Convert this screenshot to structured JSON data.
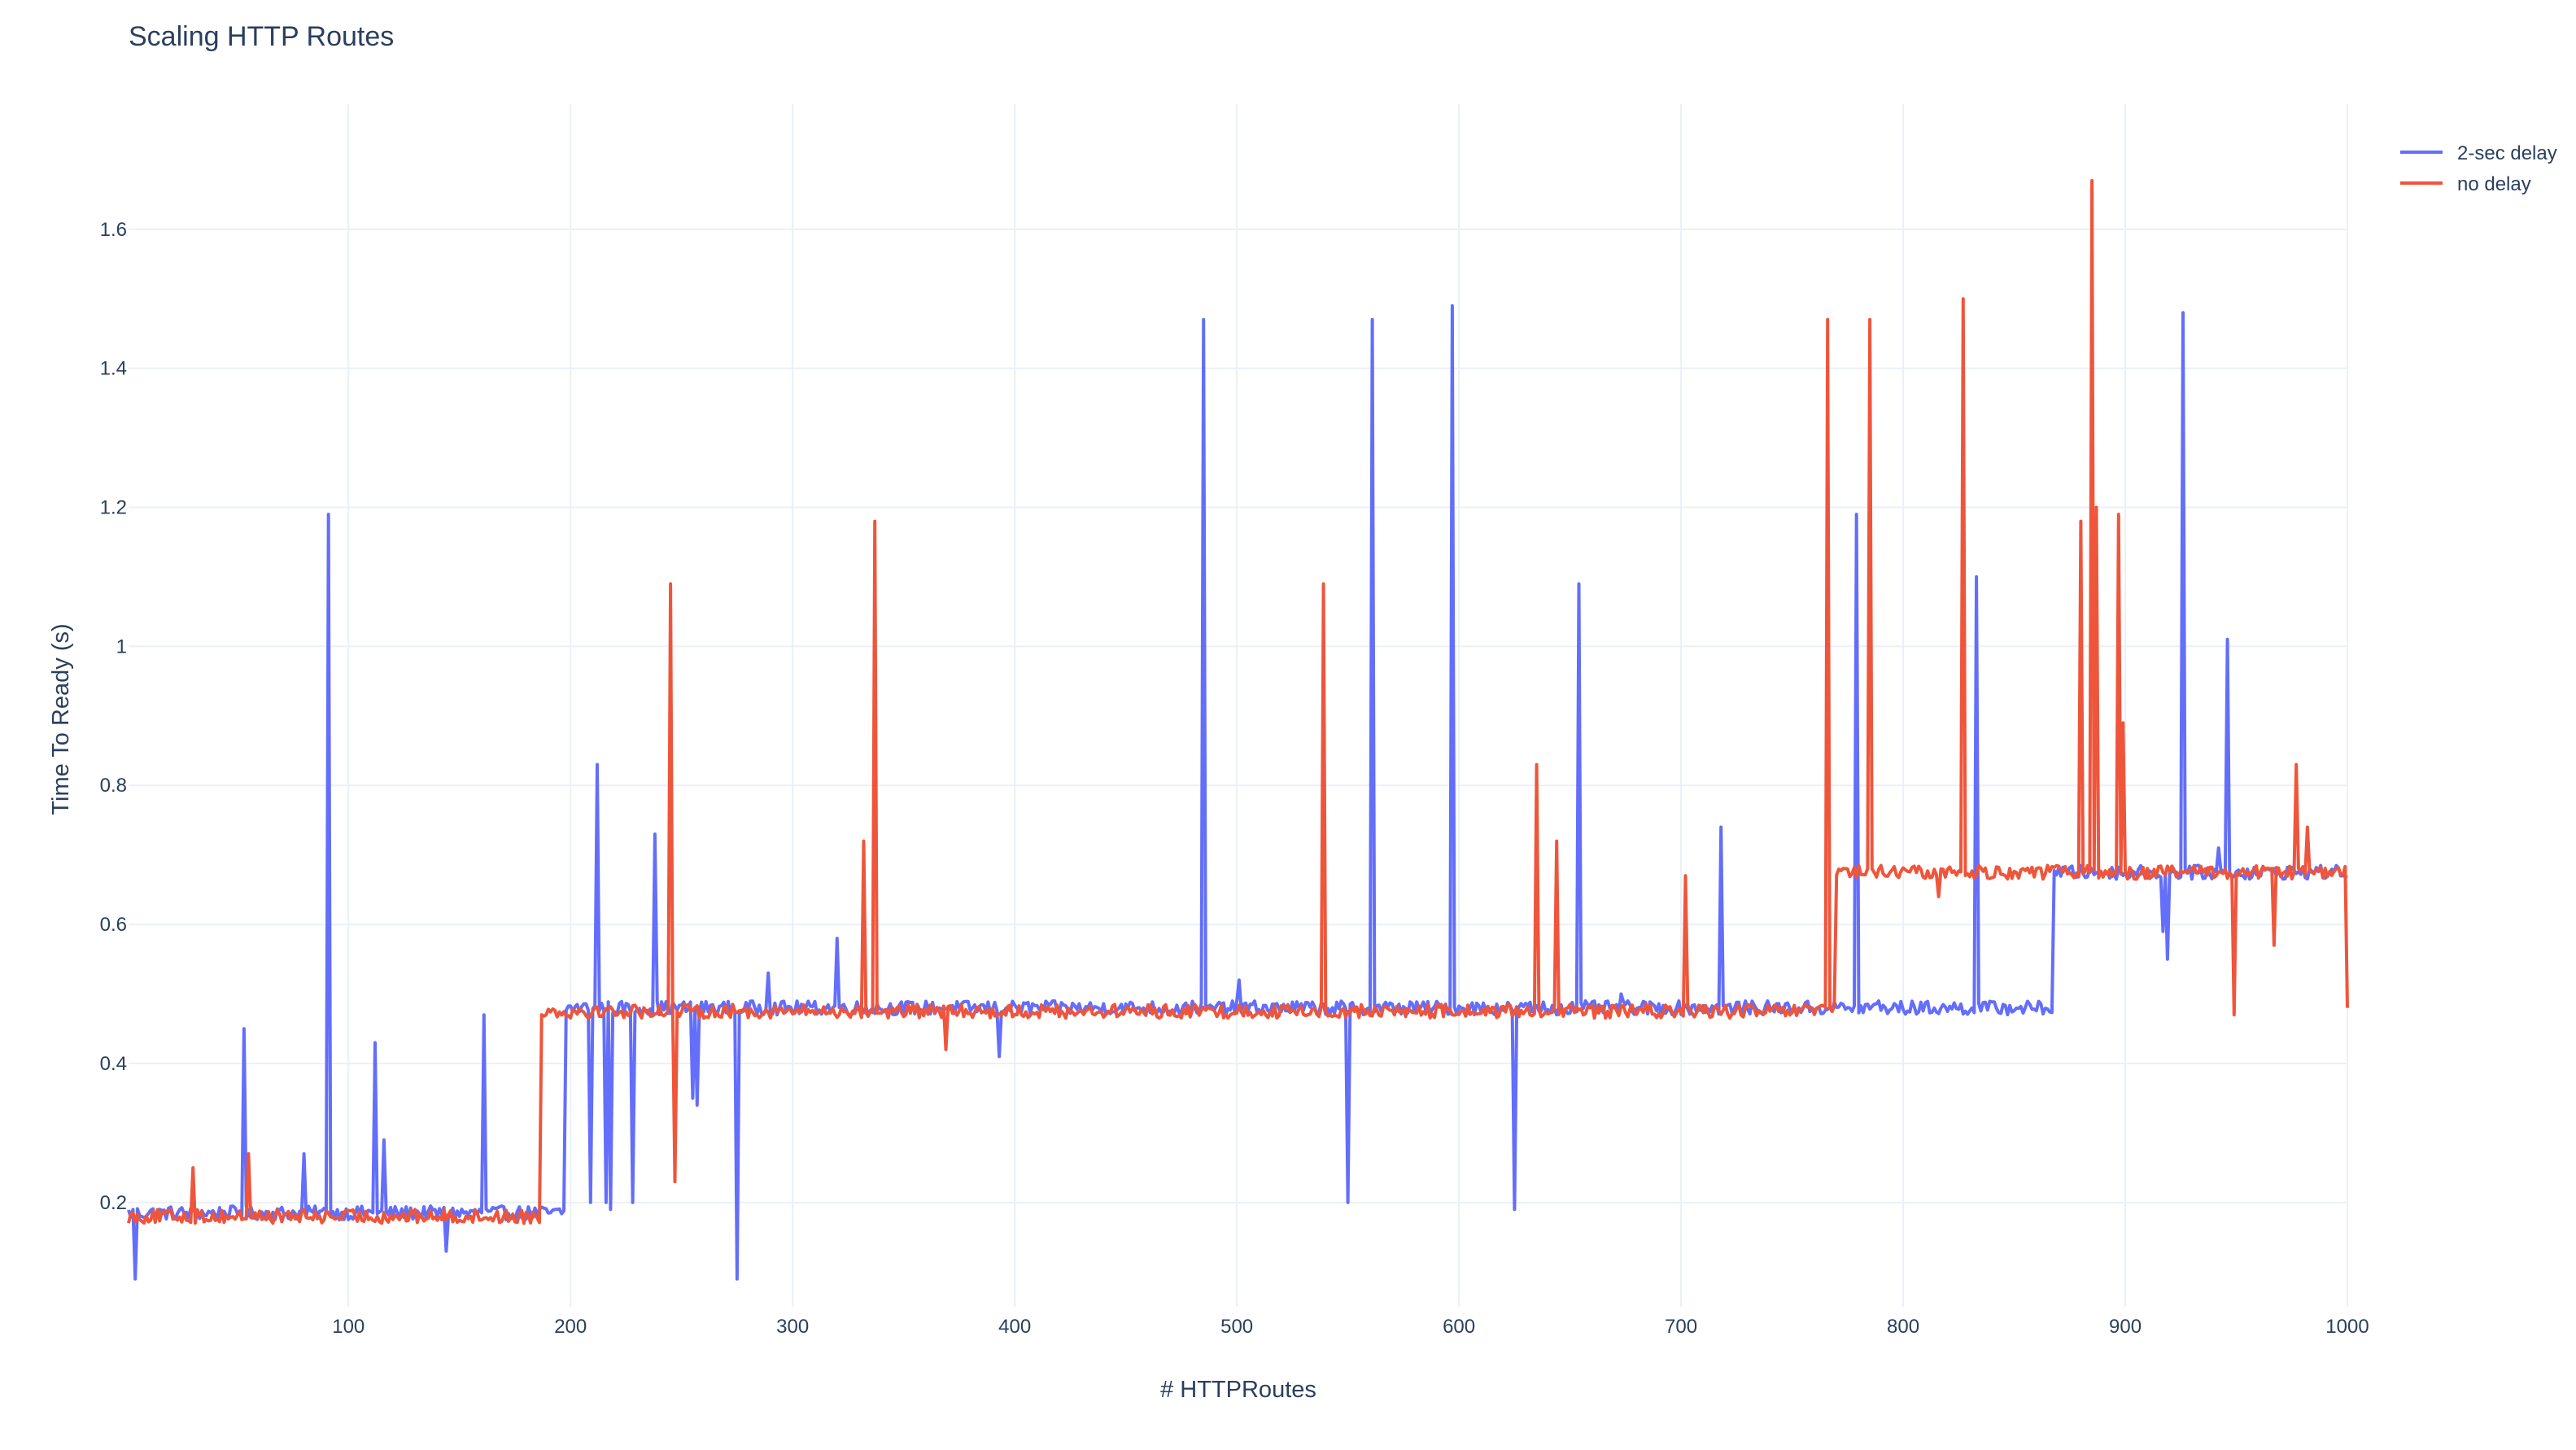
{
  "chart_data": {
    "type": "line",
    "title": "Scaling HTTP Routes",
    "xlabel": "# HTTPRoutes",
    "ylabel": "Time To Ready (s)",
    "xlim": [
      1,
      1000
    ],
    "ylim": [
      0.05,
      1.78
    ],
    "xticks": [
      100,
      200,
      300,
      400,
      500,
      600,
      700,
      800,
      900,
      1000
    ],
    "yticks": [
      0.2,
      0.4,
      0.6,
      0.8,
      1.0,
      1.2,
      1.4,
      1.6
    ],
    "ytick_labels": [
      "0.2",
      "0.4",
      "0.6",
      "0.8",
      "1",
      "1.2",
      "1.4",
      "1.6"
    ],
    "grid": true,
    "legend_position": "top-right",
    "series": [
      {
        "name": "2-sec delay",
        "color": "#636efa",
        "base_levels": [
          {
            "from": 1,
            "to": 157,
            "value": 0.185
          },
          {
            "from": 157,
            "to": 198,
            "value": 0.185
          },
          {
            "from": 198,
            "to": 755,
            "value": 0.48
          },
          {
            "from": 755,
            "to": 868,
            "value": 0.48
          },
          {
            "from": 868,
            "to": 1000,
            "value": 0.675
          }
        ],
        "spikes": [
          {
            "x": 4,
            "y": 0.09
          },
          {
            "x": 53,
            "y": 0.45
          },
          {
            "x": 80,
            "y": 0.27
          },
          {
            "x": 91,
            "y": 1.19
          },
          {
            "x": 112,
            "y": 0.43
          },
          {
            "x": 116,
            "y": 0.29
          },
          {
            "x": 144,
            "y": 0.13
          },
          {
            "x": 161,
            "y": 0.47
          },
          {
            "x": 193,
            "y": 0.19
          },
          {
            "x": 209,
            "y": 0.2
          },
          {
            "x": 212,
            "y": 0.83
          },
          {
            "x": 216,
            "y": 0.2
          },
          {
            "x": 218,
            "y": 0.19
          },
          {
            "x": 228,
            "y": 0.2
          },
          {
            "x": 238,
            "y": 0.73
          },
          {
            "x": 255,
            "y": 0.35
          },
          {
            "x": 257,
            "y": 0.34
          },
          {
            "x": 275,
            "y": 0.09
          },
          {
            "x": 289,
            "y": 0.53
          },
          {
            "x": 320,
            "y": 0.58
          },
          {
            "x": 393,
            "y": 0.41
          },
          {
            "x": 485,
            "y": 1.47
          },
          {
            "x": 501,
            "y": 0.52
          },
          {
            "x": 550,
            "y": 0.2
          },
          {
            "x": 561,
            "y": 1.47
          },
          {
            "x": 597,
            "y": 1.49
          },
          {
            "x": 625,
            "y": 0.19
          },
          {
            "x": 654,
            "y": 1.09
          },
          {
            "x": 673,
            "y": 0.5
          },
          {
            "x": 718,
            "y": 0.74
          },
          {
            "x": 779,
            "y": 1.19
          },
          {
            "x": 789,
            "y": 0.49
          },
          {
            "x": 833,
            "y": 1.1
          },
          {
            "x": 917,
            "y": 0.59
          },
          {
            "x": 919,
            "y": 0.55
          },
          {
            "x": 926,
            "y": 1.48
          },
          {
            "x": 942,
            "y": 0.71
          },
          {
            "x": 946,
            "y": 1.01
          }
        ]
      },
      {
        "name": "no delay",
        "color": "#ef553b",
        "base_levels": [
          {
            "from": 1,
            "to": 157,
            "value": 0.18
          },
          {
            "from": 157,
            "to": 187,
            "value": 0.18
          },
          {
            "from": 187,
            "to": 728,
            "value": 0.475
          },
          {
            "from": 728,
            "to": 770,
            "value": 0.475
          },
          {
            "from": 770,
            "to": 1000,
            "value": 0.675
          }
        ],
        "spikes": [
          {
            "x": 30,
            "y": 0.25
          },
          {
            "x": 55,
            "y": 0.27
          },
          {
            "x": 245,
            "y": 1.09
          },
          {
            "x": 247,
            "y": 0.23
          },
          {
            "x": 332,
            "y": 0.72
          },
          {
            "x": 337,
            "y": 1.18
          },
          {
            "x": 369,
            "y": 0.42
          },
          {
            "x": 539,
            "y": 1.09
          },
          {
            "x": 635,
            "y": 0.83
          },
          {
            "x": 644,
            "y": 0.72
          },
          {
            "x": 702,
            "y": 0.67
          },
          {
            "x": 766,
            "y": 1.47
          },
          {
            "x": 785,
            "y": 1.47
          },
          {
            "x": 816,
            "y": 0.64
          },
          {
            "x": 827,
            "y": 1.5
          },
          {
            "x": 880,
            "y": 1.18
          },
          {
            "x": 885,
            "y": 1.67
          },
          {
            "x": 887,
            "y": 1.2
          },
          {
            "x": 897,
            "y": 1.19
          },
          {
            "x": 899,
            "y": 0.89
          },
          {
            "x": 949,
            "y": 0.47
          },
          {
            "x": 967,
            "y": 0.57
          },
          {
            "x": 977,
            "y": 0.83
          },
          {
            "x": 982,
            "y": 0.74
          },
          {
            "x": 1000,
            "y": 0.48
          }
        ]
      }
    ]
  }
}
